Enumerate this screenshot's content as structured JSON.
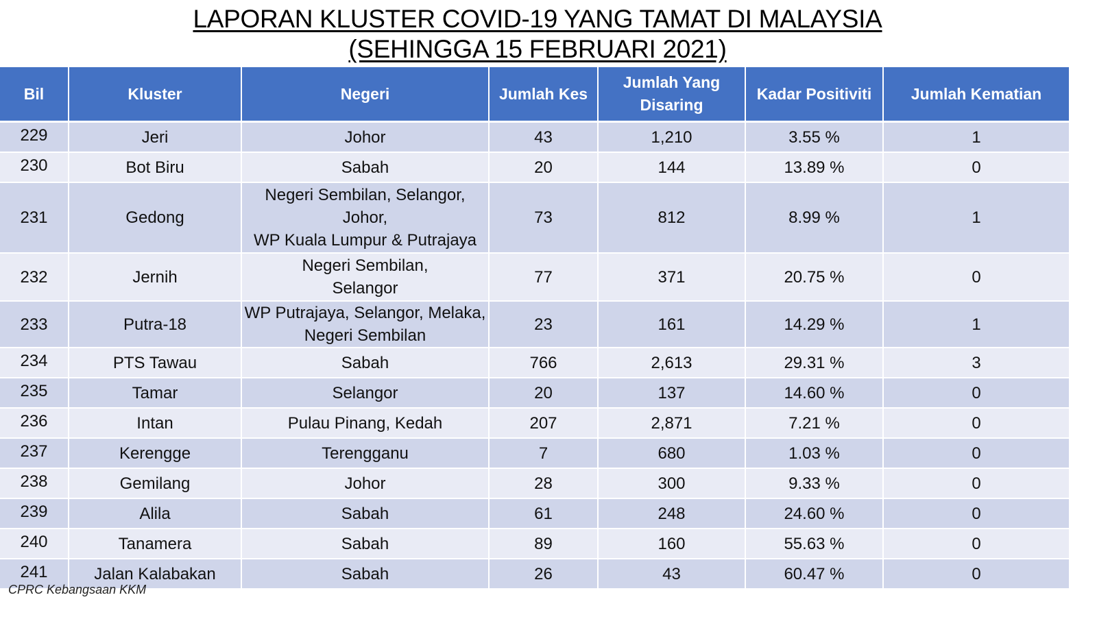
{
  "title": {
    "line1": "LAPORAN KLUSTER COVID-19 YANG TAMAT DI MALAYSIA",
    "line2": "(SEHINGGA 15 FEBRUARI 2021)"
  },
  "table": {
    "headers": {
      "bil": "Bil",
      "kluster": "Kluster",
      "negeri": "Negeri",
      "jumlah_kes": "Jumlah Kes",
      "jumlah_disaring_1": "Jumlah Yang",
      "jumlah_disaring_2": "Disaring",
      "kadar_positiviti": "Kadar Positiviti",
      "jumlah_kematian": "Jumlah Kematian"
    },
    "rows": [
      {
        "bil": "229",
        "kluster": "Jeri",
        "negeri": [
          "Johor"
        ],
        "kes": "43",
        "disaring": "1,210",
        "positiviti": "3.55 %",
        "kematian": "1"
      },
      {
        "bil": "230",
        "kluster": "Bot Biru",
        "negeri": [
          "Sabah"
        ],
        "kes": "20",
        "disaring": "144",
        "positiviti": "13.89 %",
        "kematian": "0"
      },
      {
        "bil": "231",
        "kluster": "Gedong",
        "negeri": [
          "Negeri Sembilan, Selangor,",
          "Johor,",
          "WP Kuala Lumpur & Putrajaya"
        ],
        "kes": "73",
        "disaring": "812",
        "positiviti": "8.99 %",
        "kematian": "1"
      },
      {
        "bil": "232",
        "kluster": "Jernih",
        "negeri": [
          "Negeri Sembilan,",
          "Selangor"
        ],
        "kes": "77",
        "disaring": "371",
        "positiviti": "20.75 %",
        "kematian": "0"
      },
      {
        "bil": "233",
        "kluster": "Putra-18",
        "negeri": [
          "WP Putrajaya, Selangor, Melaka,",
          "Negeri Sembilan"
        ],
        "kes": "23",
        "disaring": "161",
        "positiviti": "14.29 %",
        "kematian": "1"
      },
      {
        "bil": "234",
        "kluster": "PTS Tawau",
        "negeri": [
          "Sabah"
        ],
        "kes": "766",
        "disaring": "2,613",
        "positiviti": "29.31 %",
        "kematian": "3"
      },
      {
        "bil": "235",
        "kluster": "Tamar",
        "negeri": [
          "Selangor"
        ],
        "kes": "20",
        "disaring": "137",
        "positiviti": "14.60 %",
        "kematian": "0"
      },
      {
        "bil": "236",
        "kluster": "Intan",
        "negeri": [
          "Pulau Pinang, Kedah"
        ],
        "kes": "207",
        "disaring": "2,871",
        "positiviti": "7.21 %",
        "kematian": "0"
      },
      {
        "bil": "237",
        "kluster": "Kerengge",
        "negeri": [
          "Terengganu"
        ],
        "kes": "7",
        "disaring": "680",
        "positiviti": "1.03 %",
        "kematian": "0"
      },
      {
        "bil": "238",
        "kluster": "Gemilang",
        "negeri": [
          "Johor"
        ],
        "kes": "28",
        "disaring": "300",
        "positiviti": "9.33 %",
        "kematian": "0"
      },
      {
        "bil": "239",
        "kluster": "Alila",
        "negeri": [
          "Sabah"
        ],
        "kes": "61",
        "disaring": "248",
        "positiviti": "24.60 %",
        "kematian": "0"
      },
      {
        "bil": "240",
        "kluster": "Tanamera",
        "negeri": [
          "Sabah"
        ],
        "kes": "89",
        "disaring": "160",
        "positiviti": "55.63 %",
        "kematian": "0"
      },
      {
        "bil": "241",
        "kluster": "Jalan Kalabakan",
        "negeri": [
          "Sabah"
        ],
        "kes": "26",
        "disaring": "43",
        "positiviti": "60.47 %",
        "kematian": "0"
      }
    ]
  },
  "source": "CPRC Kebangsaan KKM",
  "colors": {
    "header_bg": "#4472c4",
    "row_odd": "#cfd5ea",
    "row_even": "#e9ebf5"
  }
}
